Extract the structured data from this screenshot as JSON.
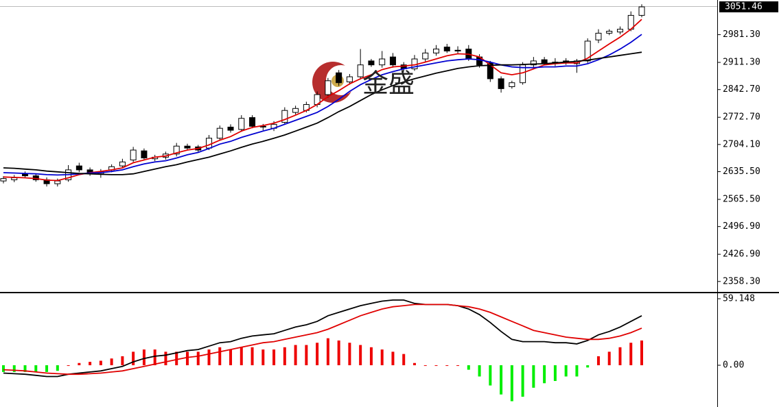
{
  "chart_data": [
    {
      "type": "candlestick",
      "open": [
        2612,
        2615,
        2630,
        2625,
        2615,
        2605,
        2615,
        2650,
        2640,
        2630,
        2640,
        2650,
        2665,
        2688,
        2668,
        2672,
        2680,
        2700,
        2698,
        2695,
        2720,
        2748,
        2742,
        2772,
        2750,
        2745,
        2760,
        2785,
        2790,
        2805,
        2830,
        2885,
        2862,
        2875,
        2915,
        2905,
        2925,
        2905,
        2895,
        2920,
        2935,
        2950,
        2942,
        2945,
        2925,
        2910,
        2870,
        2850,
        2860,
        2905,
        2918,
        2908,
        2915,
        2908,
        2915,
        2968,
        2985,
        2988,
        2995,
        3030
      ],
      "high": [
        2624,
        2627,
        2636,
        2631,
        2621,
        2618,
        2652,
        2658,
        2646,
        2642,
        2654,
        2668,
        2698,
        2694,
        2678,
        2686,
        2708,
        2706,
        2703,
        2728,
        2752,
        2755,
        2778,
        2778,
        2756,
        2763,
        2798,
        2802,
        2812,
        2838,
        2872,
        2892,
        2882,
        2945,
        2920,
        2940,
        2935,
        2912,
        2930,
        2945,
        2955,
        2958,
        2952,
        2955,
        2932,
        2915,
        2876,
        2865,
        2912,
        2925,
        2925,
        2922,
        2922,
        2920,
        2972,
        2995,
        2995,
        3002,
        3040,
        3058
      ],
      "low": [
        2606,
        2609,
        2620,
        2610,
        2598,
        2598,
        2610,
        2634,
        2625,
        2620,
        2634,
        2645,
        2660,
        2664,
        2662,
        2666,
        2674,
        2690,
        2685,
        2690,
        2714,
        2734,
        2736,
        2745,
        2740,
        2738,
        2754,
        2780,
        2785,
        2798,
        2822,
        2852,
        2855,
        2868,
        2900,
        2898,
        2898,
        2888,
        2890,
        2912,
        2928,
        2935,
        2932,
        2915,
        2898,
        2862,
        2835,
        2845,
        2855,
        2898,
        2905,
        2902,
        2905,
        2885,
        2910,
        2960,
        2980,
        2982,
        2990,
        3025
      ],
      "close": [
        2618,
        2620,
        2625,
        2615,
        2605,
        2612,
        2640,
        2640,
        2630,
        2635,
        2648,
        2660,
        2690,
        2670,
        2672,
        2680,
        2700,
        2695,
        2690,
        2720,
        2745,
        2740,
        2770,
        2750,
        2748,
        2755,
        2790,
        2795,
        2805,
        2830,
        2865,
        2860,
        2875,
        2905,
        2905,
        2920,
        2905,
        2895,
        2920,
        2935,
        2945,
        2940,
        2940,
        2920,
        2905,
        2870,
        2845,
        2860,
        2905,
        2915,
        2910,
        2912,
        2910,
        2915,
        2965,
        2985,
        2990,
        2995,
        3030,
        3051.46
      ],
      "series": [
        {
          "color": "#e00000",
          "values": [
            2622,
            2621,
            2620,
            2618,
            2614,
            2613,
            2620,
            2628,
            2633,
            2636,
            2640,
            2645,
            2658,
            2665,
            2672,
            2675,
            2683,
            2690,
            2694,
            2703,
            2715,
            2724,
            2738,
            2747,
            2752,
            2758,
            2767,
            2778,
            2790,
            2805,
            2825,
            2840,
            2857,
            2870,
            2880,
            2893,
            2900,
            2902,
            2905,
            2912,
            2920,
            2928,
            2933,
            2932,
            2925,
            2905,
            2885,
            2880,
            2885,
            2895,
            2905,
            2908,
            2910,
            2910,
            2922,
            2940,
            2958,
            2975,
            2995,
            3020
          ]
        },
        {
          "color": "#0000d0",
          "values": [
            2633,
            2632,
            2631,
            2630,
            2628,
            2627,
            2628,
            2630,
            2632,
            2633,
            2636,
            2640,
            2648,
            2655,
            2660,
            2663,
            2670,
            2678,
            2684,
            2694,
            2705,
            2712,
            2722,
            2730,
            2738,
            2745,
            2755,
            2765,
            2775,
            2785,
            2800,
            2818,
            2838,
            2855,
            2868,
            2880,
            2888,
            2895,
            2900,
            2905,
            2910,
            2915,
            2918,
            2920,
            2918,
            2912,
            2905,
            2900,
            2898,
            2898,
            2900,
            2900,
            2902,
            2902,
            2908,
            2918,
            2930,
            2945,
            2962,
            2982
          ]
        },
        {
          "color": "#000000",
          "values": [
            2645,
            2644,
            2642,
            2640,
            2637,
            2635,
            2633,
            2631,
            2630,
            2629,
            2628,
            2628,
            2630,
            2636,
            2642,
            2648,
            2653,
            2660,
            2666,
            2672,
            2680,
            2688,
            2697,
            2705,
            2712,
            2720,
            2728,
            2738,
            2748,
            2758,
            2772,
            2787,
            2800,
            2815,
            2830,
            2842,
            2853,
            2862,
            2870,
            2877,
            2884,
            2890,
            2896,
            2900,
            2903,
            2904,
            2905,
            2905,
            2906,
            2907,
            2908,
            2910,
            2912,
            2914,
            2917,
            2921,
            2925,
            2929,
            2933,
            2937
          ]
        }
      ],
      "up_color": "#ffffff",
      "down_color": "#000000",
      "ylim": [
        2332,
        3052
      ],
      "yticks": [
        {
          "value": 2981.3,
          "label": "2981.30"
        },
        {
          "value": 2911.3,
          "label": "2911.30"
        },
        {
          "value": 2842.7,
          "label": "2842.70"
        },
        {
          "value": 2772.7,
          "label": "2772.70"
        },
        {
          "value": 2704.1,
          "label": "2704.10"
        },
        {
          "value": 2635.5,
          "label": "2635.50"
        },
        {
          "value": 2565.5,
          "label": "2565.50"
        },
        {
          "value": 2496.9,
          "label": "2496.90"
        },
        {
          "value": 2426.9,
          "label": "2426.90"
        },
        {
          "value": 2358.3,
          "label": "2358.30"
        }
      ],
      "watermark": "金盛"
    },
    {
      "type": "macd",
      "series": [
        {
          "color": "#000000",
          "values": [
            -7,
            -7.5,
            -8,
            -9,
            -10,
            -10,
            -8,
            -7,
            -6,
            -5,
            -3,
            -1,
            3,
            6,
            8,
            9,
            11,
            13,
            14,
            17,
            20,
            21,
            24,
            26,
            27,
            28,
            31,
            34,
            36,
            39,
            44,
            47,
            50,
            53,
            55,
            57,
            58,
            58,
            55,
            54,
            54,
            54,
            53,
            50,
            45,
            38,
            30,
            23,
            21,
            21,
            21,
            20,
            20,
            19,
            22,
            27,
            30,
            34,
            39,
            44
          ]
        },
        {
          "color": "#e00000",
          "values": [
            -4,
            -4.5,
            -5,
            -6,
            -7,
            -7.5,
            -8,
            -8,
            -7.5,
            -7,
            -6,
            -5,
            -3,
            -1,
            1,
            3,
            5,
            7,
            8,
            10,
            12,
            14,
            16,
            18,
            20,
            21,
            23,
            25,
            27,
            29,
            32,
            36,
            40,
            44,
            47,
            50,
            52,
            53,
            54,
            54,
            54,
            54,
            53,
            52,
            50,
            47,
            43,
            39,
            35,
            31,
            29,
            27,
            25,
            24,
            23,
            23,
            24,
            26,
            29,
            33
          ]
        }
      ],
      "histogram": [
        -6,
        -6,
        -6,
        -6,
        -6,
        -5,
        0,
        2,
        3,
        4,
        6,
        8,
        12,
        14,
        14,
        12,
        12,
        12,
        12,
        14,
        16,
        14,
        16,
        16,
        14,
        14,
        16,
        18,
        18,
        20,
        24,
        22,
        20,
        18,
        16,
        14,
        12,
        10,
        2,
        0,
        0,
        0,
        0,
        -4,
        -10,
        -18,
        -26,
        -32,
        -28,
        -20,
        -16,
        -14,
        -10,
        -10,
        -2,
        8,
        12,
        16,
        20,
        22
      ],
      "pos_color": "#ee0000",
      "neg_color": "#00ee00",
      "ylim": [
        -34.1,
        62.8
      ],
      "yticks": [
        {
          "value": 59.148,
          "label": "59.148"
        },
        {
          "value": 0,
          "label": "0.00"
        }
      ]
    }
  ]
}
